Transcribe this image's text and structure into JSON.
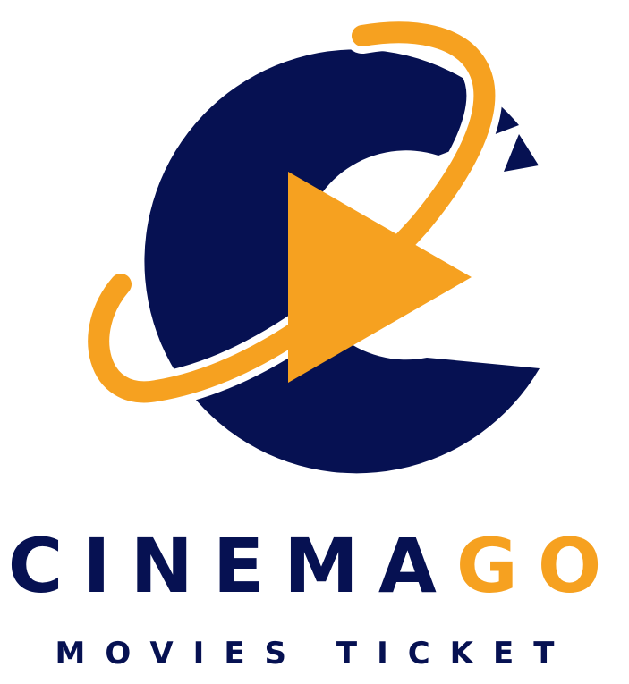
{
  "brand": {
    "name_primary": "CINEMA",
    "name_accent": "GO",
    "tagline": "MOVIES TICKET"
  },
  "colors": {
    "navy": "#061152",
    "orange": "#F6A120",
    "background": "#FFFFFF"
  },
  "icons": {
    "logo": "c-letter-with-play-button-and-orbit-ring"
  }
}
